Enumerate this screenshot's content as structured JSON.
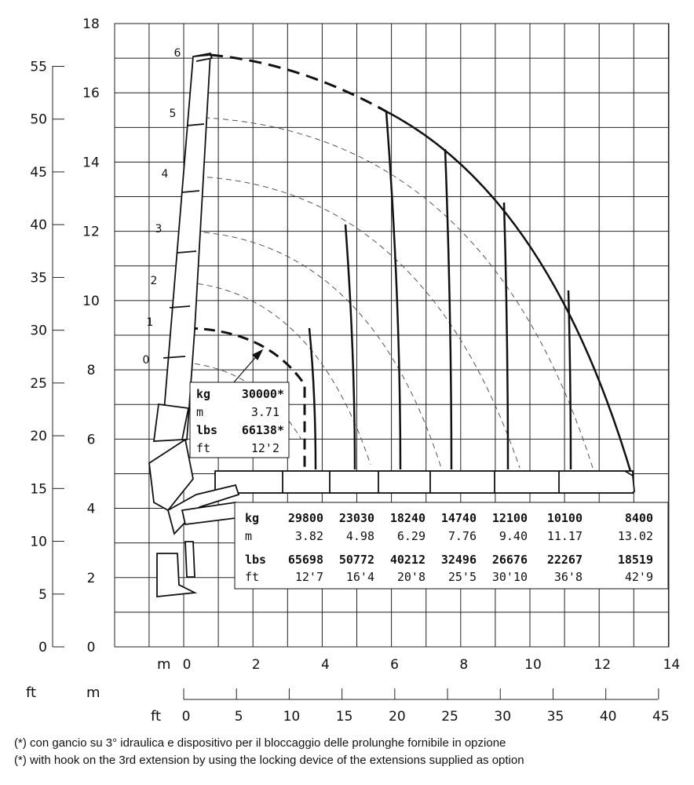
{
  "axes": {
    "left_ft_ticks": [
      "0",
      "5",
      "10",
      "15",
      "20",
      "25",
      "30",
      "35",
      "40",
      "45",
      "50",
      "55"
    ],
    "left_m_ticks": [
      "0",
      "2",
      "4",
      "6",
      "8",
      "10",
      "12",
      "14",
      "16",
      "18"
    ],
    "bottom_m_ticks": [
      "0",
      "2",
      "4",
      "6",
      "8",
      "10",
      "12",
      "14"
    ],
    "bottom_ft_ticks": [
      "0",
      "5",
      "10",
      "15",
      "20",
      "25",
      "30",
      "35",
      "40",
      "45"
    ],
    "unit_ft": "ft",
    "unit_m": "m"
  },
  "extensions": [
    "0",
    "1",
    "2",
    "3",
    "4",
    "5",
    "6"
  ],
  "callout": {
    "rows": [
      {
        "unit": "kg",
        "value": "30000*"
      },
      {
        "unit": "m",
        "value": "3.71"
      },
      {
        "unit": "lbs",
        "value": "66138*"
      },
      {
        "unit": "ft",
        "value": "12'2"
      }
    ]
  },
  "table": {
    "kg": {
      "label": "kg",
      "values": [
        "29800",
        "23030",
        "18240",
        "14740",
        "12100",
        "10100",
        "8400"
      ]
    },
    "m": {
      "label": "m",
      "values": [
        "3.82",
        "4.98",
        "6.29",
        "7.76",
        "9.40",
        "11.17",
        "13.02"
      ]
    },
    "lbs": {
      "label": "lbs",
      "values": [
        "65698",
        "50772",
        "40212",
        "32496",
        "26676",
        "22267",
        "18519"
      ]
    },
    "ft": {
      "label": "ft",
      "values": [
        "12'7",
        "16'4",
        "20'8",
        "25'5",
        "30'10",
        "36'8",
        "42'9"
      ]
    }
  },
  "footnotes": {
    "it": "(*) con gancio su 3° idraulica e dispositivo per il bloccaggio delle prolunghe fornibile in opzione",
    "en": "(*) with hook on the 3rd extension by using the locking device of the extensions supplied as option"
  }
}
